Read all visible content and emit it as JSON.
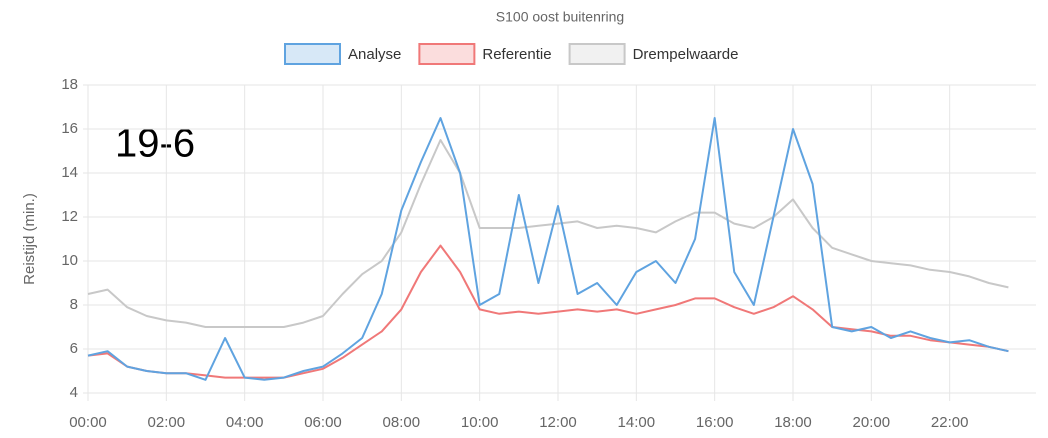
{
  "chart_data": {
    "type": "line",
    "title": "S100 oost buitenring",
    "annotation": "19-6",
    "y_label": "Reistijd (min.)",
    "x": [
      0,
      0.5,
      1,
      1.5,
      2,
      2.5,
      3,
      3.5,
      4,
      4.5,
      5,
      5.5,
      6,
      6.5,
      7,
      7.5,
      8,
      8.5,
      9,
      9.5,
      10,
      10.5,
      11,
      11.5,
      12,
      12.5,
      13,
      13.5,
      14,
      14.5,
      15,
      15.5,
      16,
      16.5,
      17,
      17.5,
      18,
      18.5,
      19,
      19.5,
      20,
      20.5,
      21,
      21.5,
      22,
      22.5,
      23,
      23.5
    ],
    "series": [
      {
        "name": "Analyse",
        "color": "#5fa3e0",
        "values": [
          5.7,
          5.9,
          5.2,
          5.0,
          4.9,
          4.9,
          4.6,
          6.5,
          4.7,
          4.6,
          4.7,
          5.0,
          5.2,
          5.8,
          6.5,
          8.5,
          12.3,
          14.5,
          16.5,
          14.0,
          8.0,
          8.5,
          13.0,
          9.0,
          12.5,
          8.5,
          9.0,
          8.0,
          9.5,
          10.0,
          9.0,
          11.0,
          16.5,
          9.5,
          8.0,
          12.0,
          16.0,
          13.5,
          7.0,
          6.8,
          7.0,
          6.5,
          6.8,
          6.5,
          6.3,
          6.4,
          6.1,
          5.9
        ]
      },
      {
        "name": "Referentie",
        "color": "#f07878",
        "values": [
          5.7,
          5.8,
          5.2,
          5.0,
          4.9,
          4.9,
          4.8,
          4.7,
          4.7,
          4.7,
          4.7,
          4.9,
          5.1,
          5.6,
          6.2,
          6.8,
          7.8,
          9.5,
          10.7,
          9.5,
          7.8,
          7.6,
          7.7,
          7.6,
          7.7,
          7.8,
          7.7,
          7.8,
          7.6,
          7.8,
          8.0,
          8.3,
          8.3,
          7.9,
          7.6,
          7.9,
          8.4,
          7.8,
          7.0,
          6.9,
          6.8,
          6.6,
          6.6,
          6.4,
          6.3,
          6.2,
          6.1,
          5.9
        ]
      },
      {
        "name": "Drempelwaarde",
        "color": "#c8c8c8",
        "values": [
          8.5,
          8.7,
          7.9,
          7.5,
          7.3,
          7.2,
          7.0,
          7.0,
          7.0,
          7.0,
          7.0,
          7.2,
          7.5,
          8.5,
          9.4,
          10.0,
          11.3,
          13.5,
          15.5,
          14.0,
          11.5,
          11.5,
          11.5,
          11.6,
          11.7,
          11.8,
          11.5,
          11.6,
          11.5,
          11.3,
          11.8,
          12.2,
          12.2,
          11.7,
          11.5,
          12.0,
          12.8,
          11.5,
          10.6,
          10.3,
          10.0,
          9.9,
          9.8,
          9.6,
          9.5,
          9.3,
          9.0,
          8.8
        ]
      }
    ],
    "xlim": [
      0,
      24
    ],
    "xticks": [
      {
        "value": 0,
        "label": "00:00"
      },
      {
        "value": 2,
        "label": "02:00"
      },
      {
        "value": 4,
        "label": "04:00"
      },
      {
        "value": 6,
        "label": "06:00"
      },
      {
        "value": 8,
        "label": "08:00"
      },
      {
        "value": 10,
        "label": "10:00"
      },
      {
        "value": 12,
        "label": "12:00"
      },
      {
        "value": 14,
        "label": "14:00"
      },
      {
        "value": 16,
        "label": "16:00"
      },
      {
        "value": 18,
        "label": "18:00"
      },
      {
        "value": 20,
        "label": "20:00"
      },
      {
        "value": 22,
        "label": "22:00"
      }
    ],
    "ylim": [
      4,
      18
    ],
    "yticks": [
      4,
      6,
      8,
      10,
      12,
      14,
      16,
      18
    ],
    "grid": true
  }
}
